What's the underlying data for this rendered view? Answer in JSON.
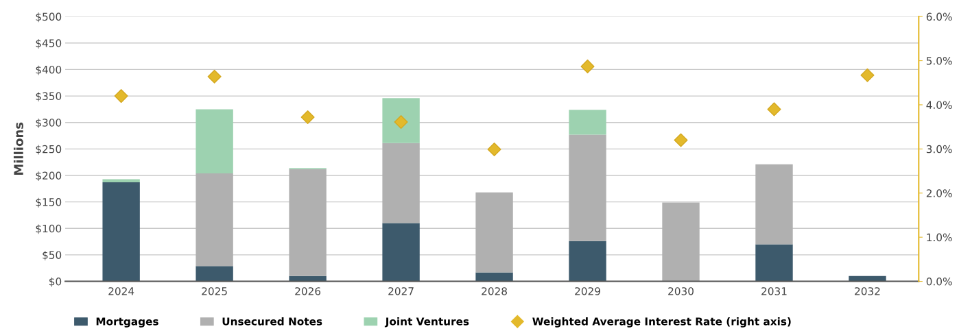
{
  "chart_data": {
    "type": "bar",
    "stacked": true,
    "ylabel": "Millions",
    "categories": [
      "2024",
      "2025",
      "2026",
      "2027",
      "2028",
      "2029",
      "2030",
      "2031",
      "2032"
    ],
    "series": [
      {
        "name": "Mortgages",
        "color": "#3d5a6c",
        "values": [
          187,
          29,
          10,
          110,
          17,
          76,
          0,
          70,
          10
        ]
      },
      {
        "name": "Unsecured Notes",
        "color": "#b0b0b0",
        "values": [
          0,
          175,
          202,
          151,
          151,
          201,
          149,
          151,
          0
        ]
      },
      {
        "name": "Joint Ventures",
        "color": "#9dd2b0",
        "values": [
          6,
          121,
          2,
          85,
          0,
          47,
          0,
          0,
          0
        ]
      },
      {
        "name": "Weighted Average Interest Rate (right axis)",
        "type": "scatter",
        "axis": "y2",
        "marker": "diamond",
        "color": "#e3b92b",
        "values": [
          4.2,
          4.64,
          3.72,
          3.61,
          2.99,
          4.87,
          3.2,
          3.9,
          4.67
        ]
      }
    ],
    "ylim": [
      0,
      500
    ],
    "yticks": [
      {
        "value": 0,
        "label": "$0"
      },
      {
        "value": 50,
        "label": "$50"
      },
      {
        "value": 100,
        "label": "$100"
      },
      {
        "value": 150,
        "label": "$150"
      },
      {
        "value": 200,
        "label": "$200"
      },
      {
        "value": 250,
        "label": "$250"
      },
      {
        "value": 300,
        "label": "$300"
      },
      {
        "value": 350,
        "label": "$350"
      },
      {
        "value": 400,
        "label": "$400"
      },
      {
        "value": 450,
        "label": "$450"
      },
      {
        "value": 500,
        "label": "$500"
      }
    ],
    "y2lim": [
      0,
      6
    ],
    "y2ticks": [
      {
        "value": 0,
        "label": "0.0%"
      },
      {
        "value": 1,
        "label": "1.0%"
      },
      {
        "value": 2,
        "label": "2.0%"
      },
      {
        "value": 3,
        "label": "3.0%"
      },
      {
        "value": 4,
        "label": "4.0%"
      },
      {
        "value": 5,
        "label": "5.0%"
      },
      {
        "value": 6,
        "label": "6.0%"
      }
    ],
    "grid": "y",
    "legend": "bottom"
  }
}
